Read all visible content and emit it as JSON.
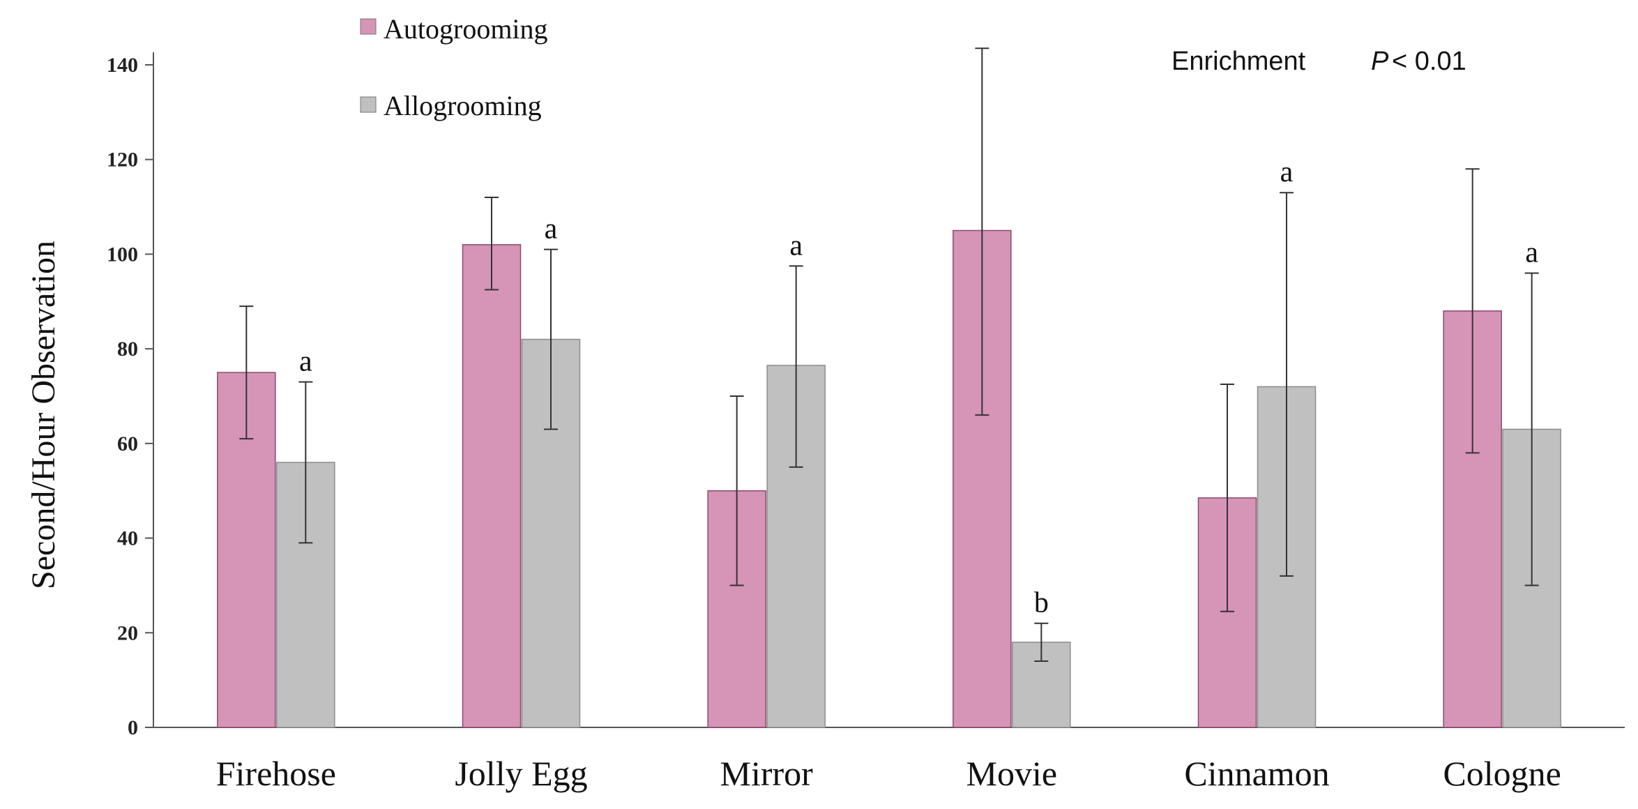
{
  "chart_data": {
    "type": "bar",
    "title": "",
    "xlabel": "",
    "ylabel": "Second/Hour Observation",
    "ylim": [
      0,
      150
    ],
    "yticks": [
      0,
      20,
      40,
      60,
      80,
      100,
      120,
      140
    ],
    "grid": false,
    "legend_position": "top-left",
    "categories": [
      "Firehose",
      "Jolly Egg",
      "Mirror",
      "Movie",
      "Cinnamon",
      "Cologne"
    ],
    "series": [
      {
        "name": "Autogrooming",
        "color": "#d694b6",
        "values": [
          75,
          102,
          50,
          105,
          48.5,
          88
        ],
        "error_low": [
          61,
          92.5,
          30,
          66,
          24.5,
          58
        ],
        "error_high": [
          89,
          112,
          70,
          143.5,
          72.5,
          118
        ]
      },
      {
        "name": "Allogrooming",
        "color": "#c0c0c0",
        "values": [
          56,
          82,
          76.5,
          18,
          72,
          63
        ],
        "error_low": [
          39,
          63,
          55,
          14,
          32,
          30
        ],
        "error_high": [
          73,
          101,
          97.5,
          22,
          113,
          96
        ],
        "significance": [
          "a",
          "a",
          "a",
          "b",
          "a",
          "a"
        ]
      }
    ],
    "annotation": {
      "label": "Enrichment",
      "p_symbol": "P",
      "p_text": "< 0.01"
    }
  }
}
